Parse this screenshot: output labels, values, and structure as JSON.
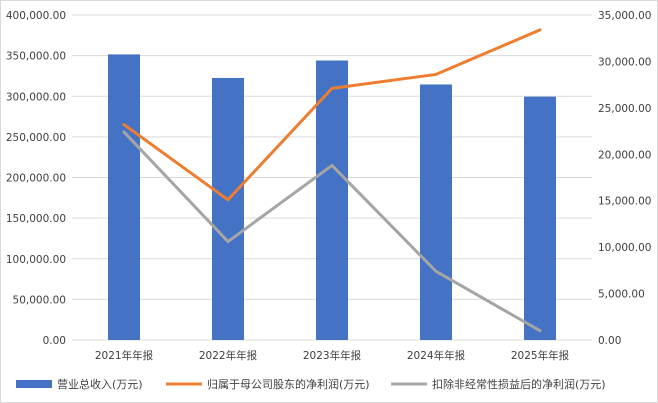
{
  "chart_data": {
    "type": "bar+line",
    "categories": [
      "2021年年报",
      "2022年年报",
      "2023年年报",
      "2024年年报",
      "2025年年报"
    ],
    "left_axis": {
      "ylim": [
        0,
        400000
      ],
      "ticks": [
        "0.00",
        "50,000.00",
        "100,000.00",
        "150,000.00",
        "200,000.00",
        "250,000.00",
        "300,000.00",
        "350,000.00",
        "400,000.00"
      ]
    },
    "right_axis": {
      "ylim": [
        0,
        35000
      ],
      "ticks": [
        "0.00",
        "5,000.00",
        "10,000.00",
        "15,000.00",
        "20,000.00",
        "25,000.00",
        "30,000.00",
        "35,000.00"
      ]
    },
    "series": [
      {
        "name": "营业总收入(万元)",
        "type": "bar",
        "axis": "left",
        "color": "#4472C4",
        "values": [
          351500,
          322500,
          344000,
          314500,
          299500
        ]
      },
      {
        "name": "归属于母公司股东的净利润(万元)",
        "type": "line",
        "axis": "right",
        "color": "#ED7D31",
        "values": [
          23200,
          15100,
          27100,
          28600,
          33400
        ]
      },
      {
        "name": "扣除非经常性损益后的净利润(万元)",
        "type": "line",
        "axis": "right",
        "color": "#A5A5A5",
        "values": [
          22400,
          10600,
          18800,
          7400,
          1000
        ]
      }
    ],
    "grid": true,
    "legend": "bottom"
  }
}
